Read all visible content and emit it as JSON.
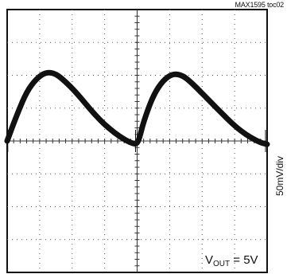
{
  "header": {
    "toc_label": "MAX1595 toc02"
  },
  "side_label": "50mV/div",
  "annotation": {
    "symbol": "V",
    "subscript": "OUT",
    "value": " = 5V"
  },
  "chart_data": {
    "type": "line",
    "title": "",
    "xlabel": "",
    "ylabel": "",
    "grid": true,
    "x_divisions": 8,
    "y_divisions": 8,
    "y_units": "50mV/div",
    "xlim": [
      0,
      8
    ],
    "ylim": [
      -4,
      4
    ],
    "series": [
      {
        "x": [
          0.0,
          0.3,
          0.6,
          0.9,
          1.2,
          1.5,
          1.8,
          2.1,
          2.4,
          2.7,
          3.0,
          3.3,
          3.6,
          3.8,
          3.95,
          4.05,
          4.2,
          4.5,
          4.8,
          5.1,
          5.4,
          5.7,
          6.0,
          6.3,
          6.6,
          6.9,
          7.2,
          7.5,
          7.8,
          8.0
        ],
        "y": [
          0.0,
          0.8,
          1.5,
          1.9,
          2.1,
          2.05,
          1.8,
          1.5,
          1.15,
          0.8,
          0.5,
          0.25,
          0.05,
          -0.05,
          -0.1,
          0.0,
          0.6,
          1.4,
          1.85,
          2.05,
          2.0,
          1.75,
          1.45,
          1.15,
          0.85,
          0.55,
          0.3,
          0.1,
          -0.05,
          -0.1
        ]
      }
    ]
  }
}
